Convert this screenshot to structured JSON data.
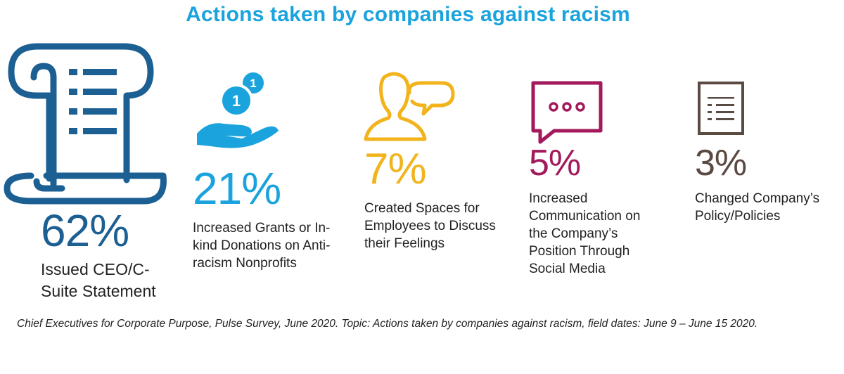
{
  "chart_data": {
    "type": "table",
    "title": "Actions taken by companies against racism",
    "categories": [
      "Issued CEO/C-Suite Statement",
      "Increased Grants or In-kind Donations on Anti-racism Nonprofits",
      "Created Spaces for Employees to Discuss their Feelings",
      "Increased Communication on the Company’s Position Through Social Media",
      "Changed Company’s Policy/Policies"
    ],
    "series": [
      {
        "values": [
          62,
          21,
          7,
          5,
          3
        ]
      }
    ],
    "value_labels": [
      "62%",
      "21%",
      "7%",
      "5%",
      "3%"
    ],
    "label_lines": [
      [
        "Issued CEO/C-",
        "Suite Statement"
      ],
      [
        "Increased Grants or In-",
        "kind Donations on Anti-",
        "racism Nonprofits"
      ],
      [
        "Created Spaces for",
        "Employees to Discuss",
        "their Feelings"
      ],
      [
        "Increased",
        "Communication on",
        "the Company’s",
        "Position Through",
        "Social Media"
      ],
      [
        "Changed Company’s",
        "Policy/Policies"
      ]
    ],
    "colors": [
      "#1c5f93",
      "#1aa3dc",
      "#f2b31b",
      "#a3195b",
      "#5a4a42"
    ],
    "icons": [
      "scroll-icon",
      "donation-hand-icon",
      "people-chat-icon",
      "message-bubble-icon",
      "document-icon"
    ],
    "title_color": "#1aa3dc"
  },
  "footnote": "Chief Executives for Corporate Purpose, Pulse Survey, June 2020. Topic: Actions taken by companies against racism, field dates: June 9 – June 15 2020."
}
